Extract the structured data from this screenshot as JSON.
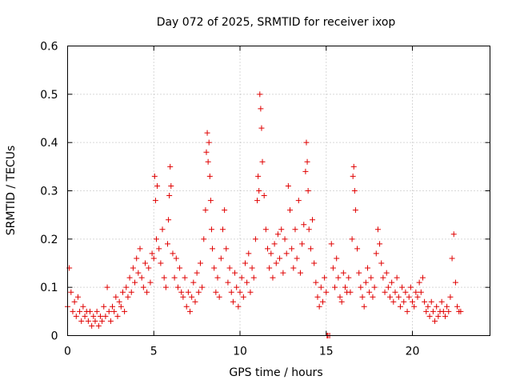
{
  "chart_data": {
    "type": "scatter",
    "title": "Day 072 of 2025, SRMTID for receiver ixop",
    "xlabel": "GPS time / hours",
    "ylabel": "SRMTID / TECUs",
    "xlim": [
      0,
      24.5
    ],
    "ylim": [
      0,
      0.6
    ],
    "x_ticks": [
      0,
      5,
      10,
      15,
      20
    ],
    "x_tick_labels": [
      "0",
      "5",
      "10",
      "15",
      "20"
    ],
    "y_ticks": [
      0,
      0.1,
      0.2,
      0.3,
      0.4,
      0.5,
      0.6
    ],
    "y_tick_labels": [
      "0",
      "0.1",
      "0.2",
      "0.3",
      "0.4",
      "0.5",
      "0.6"
    ],
    "grid": true,
    "marker": "plus",
    "color": "#e00000",
    "series": [
      {
        "name": "SRMTID",
        "x": [
          0.0,
          0.1,
          0.2,
          0.3,
          0.4,
          0.5,
          0.6,
          0.7,
          0.8,
          0.9,
          1.0,
          1.1,
          1.2,
          1.3,
          1.4,
          1.5,
          1.6,
          1.7,
          1.8,
          1.9,
          2.0,
          2.1,
          2.2,
          2.3,
          2.4,
          2.5,
          2.6,
          2.7,
          2.8,
          2.9,
          3.0,
          3.1,
          3.2,
          3.3,
          3.4,
          3.5,
          3.6,
          3.7,
          3.8,
          3.9,
          4.0,
          4.1,
          4.2,
          4.3,
          4.4,
          4.5,
          4.6,
          4.7,
          4.8,
          4.9,
          5.0,
          5.05,
          5.1,
          5.15,
          5.2,
          5.3,
          5.4,
          5.5,
          5.6,
          5.7,
          5.8,
          5.85,
          5.9,
          5.95,
          6.0,
          6.1,
          6.2,
          6.3,
          6.4,
          6.5,
          6.6,
          6.7,
          6.8,
          6.9,
          7.0,
          7.1,
          7.2,
          7.3,
          7.4,
          7.5,
          7.6,
          7.7,
          7.8,
          7.9,
          8.0,
          8.05,
          8.1,
          8.15,
          8.2,
          8.25,
          8.3,
          8.35,
          8.4,
          8.5,
          8.6,
          8.7,
          8.8,
          8.9,
          9.0,
          9.1,
          9.2,
          9.3,
          9.4,
          9.5,
          9.6,
          9.7,
          9.8,
          9.9,
          10.0,
          10.1,
          10.2,
          10.3,
          10.4,
          10.5,
          10.6,
          10.7,
          10.8,
          10.9,
          11.0,
          11.05,
          11.1,
          11.15,
          11.2,
          11.25,
          11.3,
          11.4,
          11.5,
          11.6,
          11.7,
          11.8,
          11.9,
          12.0,
          12.1,
          12.2,
          12.3,
          12.4,
          12.5,
          12.6,
          12.7,
          12.8,
          12.9,
          13.0,
          13.1,
          13.2,
          13.3,
          13.4,
          13.5,
          13.6,
          13.7,
          13.8,
          13.85,
          13.9,
          13.95,
          14.0,
          14.1,
          14.2,
          14.3,
          14.4,
          14.5,
          14.6,
          14.7,
          14.8,
          14.9,
          15.0,
          15.05,
          15.1,
          15.2,
          15.3,
          15.4,
          15.5,
          15.6,
          15.7,
          15.8,
          15.9,
          16.0,
          16.1,
          16.2,
          16.3,
          16.4,
          16.5,
          16.55,
          16.6,
          16.65,
          16.7,
          16.8,
          16.9,
          17.0,
          17.1,
          17.2,
          17.3,
          17.4,
          17.5,
          17.6,
          17.7,
          17.8,
          17.9,
          18.0,
          18.1,
          18.2,
          18.3,
          18.4,
          18.5,
          18.6,
          18.7,
          18.8,
          18.9,
          19.0,
          19.1,
          19.2,
          19.3,
          19.4,
          19.5,
          19.6,
          19.7,
          19.8,
          19.9,
          20.0,
          20.1,
          20.2,
          20.3,
          20.4,
          20.5,
          20.6,
          20.7,
          20.8,
          20.9,
          21.0,
          21.1,
          21.2,
          21.3,
          21.4,
          21.5,
          21.6,
          21.7,
          21.8,
          21.9,
          22.0,
          22.1,
          22.2,
          22.3,
          22.4,
          22.5,
          22.6,
          22.7,
          22.8
        ],
        "y": [
          0.06,
          0.14,
          0.09,
          0.05,
          0.07,
          0.04,
          0.08,
          0.05,
          0.03,
          0.06,
          0.04,
          0.05,
          0.03,
          0.05,
          0.02,
          0.04,
          0.03,
          0.05,
          0.02,
          0.04,
          0.03,
          0.06,
          0.04,
          0.1,
          0.05,
          0.03,
          0.06,
          0.05,
          0.08,
          0.04,
          0.07,
          0.06,
          0.09,
          0.05,
          0.1,
          0.08,
          0.12,
          0.09,
          0.14,
          0.11,
          0.16,
          0.13,
          0.18,
          0.12,
          0.1,
          0.15,
          0.09,
          0.14,
          0.11,
          0.17,
          0.16,
          0.33,
          0.28,
          0.2,
          0.31,
          0.18,
          0.15,
          0.22,
          0.12,
          0.1,
          0.19,
          0.24,
          0.29,
          0.35,
          0.31,
          0.17,
          0.12,
          0.16,
          0.1,
          0.14,
          0.09,
          0.08,
          0.12,
          0.06,
          0.09,
          0.05,
          0.08,
          0.11,
          0.07,
          0.13,
          0.09,
          0.15,
          0.1,
          0.2,
          0.26,
          0.38,
          0.42,
          0.36,
          0.4,
          0.33,
          0.28,
          0.22,
          0.18,
          0.14,
          0.09,
          0.12,
          0.08,
          0.16,
          0.22,
          0.26,
          0.18,
          0.11,
          0.14,
          0.09,
          0.07,
          0.13,
          0.1,
          0.06,
          0.09,
          0.12,
          0.08,
          0.15,
          0.11,
          0.17,
          0.09,
          0.14,
          0.12,
          0.2,
          0.28,
          0.33,
          0.3,
          0.5,
          0.47,
          0.43,
          0.36,
          0.29,
          0.22,
          0.18,
          0.14,
          0.17,
          0.12,
          0.19,
          0.15,
          0.21,
          0.16,
          0.22,
          0.13,
          0.2,
          0.17,
          0.31,
          0.26,
          0.18,
          0.14,
          0.22,
          0.16,
          0.28,
          0.13,
          0.19,
          0.23,
          0.34,
          0.4,
          0.36,
          0.3,
          0.22,
          0.18,
          0.24,
          0.15,
          0.11,
          0.08,
          0.06,
          0.1,
          0.07,
          0.12,
          0.09,
          0.0,
          0.0,
          0.0,
          0.19,
          0.14,
          0.1,
          0.16,
          0.12,
          0.08,
          0.07,
          0.13,
          0.1,
          0.09,
          0.12,
          0.09,
          0.2,
          0.33,
          0.35,
          0.3,
          0.26,
          0.18,
          0.13,
          0.1,
          0.08,
          0.06,
          0.11,
          0.14,
          0.09,
          0.12,
          0.08,
          0.1,
          0.17,
          0.22,
          0.19,
          0.15,
          0.12,
          0.09,
          0.13,
          0.1,
          0.08,
          0.11,
          0.07,
          0.09,
          0.12,
          0.08,
          0.06,
          0.1,
          0.07,
          0.09,
          0.05,
          0.08,
          0.1,
          0.07,
          0.06,
          0.09,
          0.08,
          0.11,
          0.09,
          0.12,
          0.07,
          0.05,
          0.06,
          0.04,
          0.07,
          0.05,
          0.03,
          0.06,
          0.04,
          0.05,
          0.07,
          0.05,
          0.04,
          0.06,
          0.05,
          0.08,
          0.16,
          0.21,
          0.11,
          0.06,
          0.05,
          0.05
        ]
      }
    ]
  }
}
